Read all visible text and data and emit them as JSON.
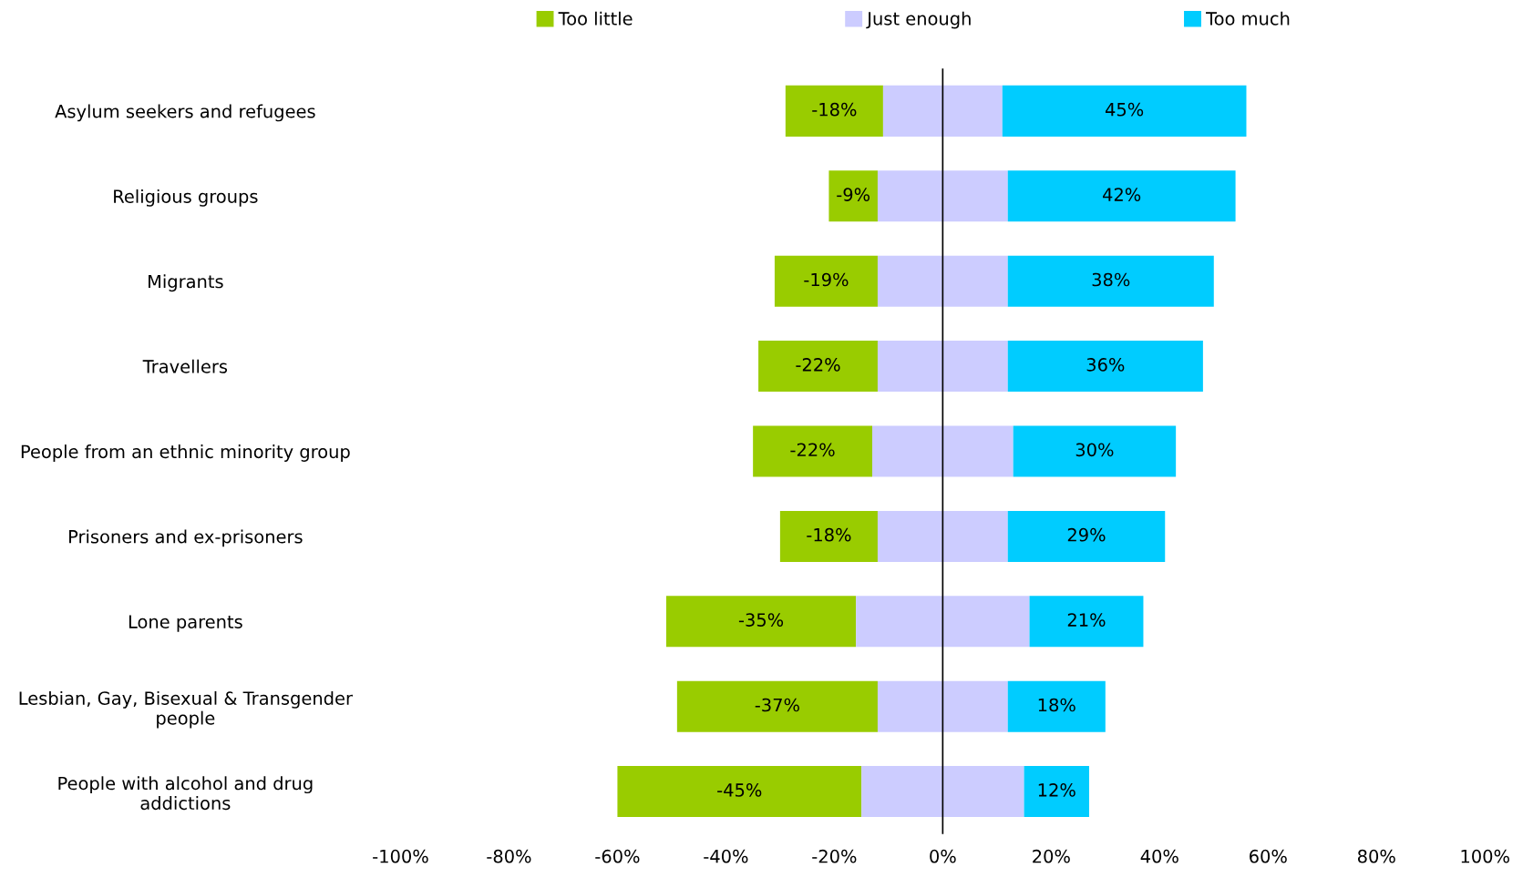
{
  "chart_data": {
    "type": "bar",
    "orientation": "horizontal",
    "legend": "top",
    "categories": [
      "Asylum seekers and refugees",
      "Religious groups",
      "Migrants",
      "Travellers",
      "People from an ethnic minority group",
      "Prisoners and ex-prisoners",
      "Lone parents",
      "Lesbian, Gay, Bisexual & Transgender\npeople",
      "People with alcohol and drug\naddictions"
    ],
    "series": [
      {
        "name": "Too little",
        "color": "#99cc00",
        "values": [
          -18,
          -9,
          -19,
          -22,
          -22,
          -18,
          -35,
          -37,
          -45
        ],
        "base": [
          -11,
          -12,
          -12,
          -12,
          -13,
          -12,
          -16,
          -12,
          -15
        ],
        "value_labels": [
          "-18%",
          "-9%",
          "-19%",
          "-22%",
          "-22%",
          "-18%",
          "-35%",
          "-37%",
          "-45%"
        ]
      },
      {
        "name": "Just enough",
        "color": "#ccccff",
        "values": [
          22,
          24,
          24,
          24,
          26,
          24,
          32,
          24,
          30
        ],
        "base": [
          -11,
          -12,
          -12,
          -12,
          -13,
          -12,
          -16,
          -12,
          -15
        ]
      },
      {
        "name": "Too much",
        "color": "#00ccff",
        "values": [
          45,
          42,
          38,
          36,
          30,
          29,
          21,
          18,
          12
        ],
        "base": [
          11,
          12,
          12,
          12,
          13,
          12,
          16,
          12,
          15
        ],
        "value_labels": [
          "45%",
          "42%",
          "38%",
          "36%",
          "30%",
          "29%",
          "21%",
          "18%",
          "12%"
        ]
      }
    ],
    "xlim": [
      -100,
      100
    ],
    "xticks": [
      {
        "value": -100,
        "label": "-100%"
      },
      {
        "value": -80,
        "label": "-80%"
      },
      {
        "value": -60,
        "label": "-60%"
      },
      {
        "value": -40,
        "label": "-40%"
      },
      {
        "value": -20,
        "label": "-20%"
      },
      {
        "value": 0,
        "label": "0%"
      },
      {
        "value": 20,
        "label": "20%"
      },
      {
        "value": 40,
        "label": "40%"
      },
      {
        "value": 60,
        "label": "60%"
      },
      {
        "value": 80,
        "label": "80%"
      },
      {
        "value": 100,
        "label": "100%"
      }
    ],
    "ref_lines": [
      {
        "axis": "x",
        "value": 0,
        "color": "#000000"
      }
    ],
    "grid": false
  }
}
